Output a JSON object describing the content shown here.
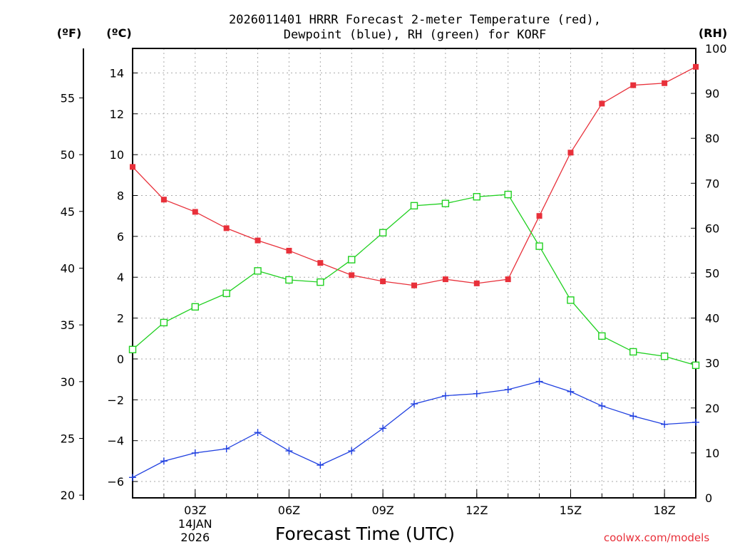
{
  "chart_data": {
    "type": "line",
    "title_lines": [
      "2026011401 HRRR Forecast 2-meter Temperature (red),",
      "Dewpoint (blue), RH (green) for KORF"
    ],
    "xlabel": "Forecast Time (UTC)",
    "x_hours": [
      1,
      2,
      3,
      4,
      5,
      6,
      7,
      8,
      9,
      10,
      11,
      12,
      13,
      14,
      15,
      16,
      17,
      18,
      19
    ],
    "xlim": [
      1,
      19
    ],
    "x_ticks": [
      {
        "hour": 3,
        "label": "03Z"
      },
      {
        "hour": 6,
        "label": "06Z"
      },
      {
        "hour": 9,
        "label": "09Z"
      },
      {
        "hour": 12,
        "label": "12Z"
      },
      {
        "hour": 15,
        "label": "15Z"
      },
      {
        "hour": 18,
        "label": "18Z"
      }
    ],
    "date_label_lines": [
      "14JAN",
      "2026"
    ],
    "left_celsius_axis": {
      "unit_label": "(ºC)",
      "ylim": [
        -6.8,
        15.2
      ],
      "ticks": [
        -6,
        -4,
        -2,
        0,
        2,
        4,
        6,
        8,
        10,
        12,
        14
      ]
    },
    "left_fahrenheit_axis": {
      "unit_label": "(ºF)",
      "ticks": [
        20,
        25,
        30,
        35,
        40,
        45,
        50,
        55
      ]
    },
    "right_rh_axis": {
      "unit_label": "(RH)",
      "ylim": [
        0,
        100
      ],
      "ticks": [
        0,
        10,
        20,
        30,
        40,
        50,
        60,
        70,
        80,
        90,
        100
      ]
    },
    "series": [
      {
        "name": "2-meter Temperature",
        "color": "#e8303a",
        "axis": "celsius",
        "marker": "filled-square",
        "values": [
          9.4,
          7.8,
          7.2,
          6.4,
          5.8,
          5.3,
          4.7,
          4.1,
          3.8,
          3.6,
          3.9,
          3.7,
          3.9,
          7.0,
          10.1,
          12.5,
          13.4,
          13.5,
          14.3
        ]
      },
      {
        "name": "Dewpoint",
        "color": "#2040e0",
        "axis": "celsius",
        "marker": "plus",
        "values": [
          -5.8,
          -5.0,
          -4.6,
          -4.4,
          -3.6,
          -4.5,
          -5.2,
          -4.5,
          -3.4,
          -2.2,
          -1.8,
          -1.7,
          -1.5,
          -1.1,
          -1.6,
          -2.3,
          -2.8,
          -3.2,
          -3.1
        ]
      },
      {
        "name": "RH",
        "color": "#20d020",
        "axis": "rh",
        "marker": "open-square",
        "values": [
          33,
          39,
          42.5,
          45.5,
          50.5,
          48.5,
          48,
          53,
          59,
          65,
          65.5,
          67,
          67.5,
          56,
          44,
          36,
          32.5,
          31.5,
          29.5
        ]
      }
    ]
  },
  "credit": "coolwx.com/models"
}
